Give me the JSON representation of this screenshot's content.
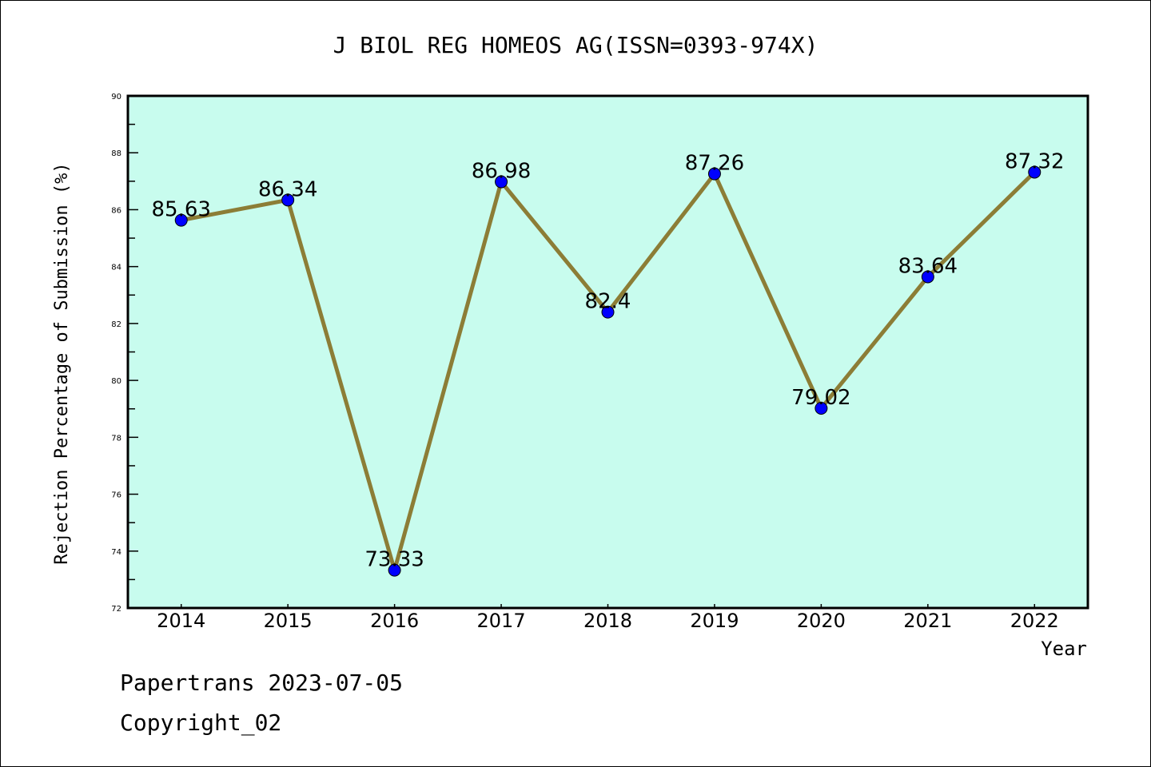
{
  "chart_data": {
    "type": "line",
    "title": "J BIOL REG HOMEOS AG(ISSN=0393-974X)",
    "xlabel": "Year",
    "ylabel": "Rejection Percentage of Submission (%)",
    "x": [
      "2014",
      "2015",
      "2016",
      "2017",
      "2018",
      "2019",
      "2020",
      "2021",
      "2022"
    ],
    "values": [
      85.63,
      86.34,
      73.33,
      86.98,
      82.4,
      87.26,
      79.02,
      83.64,
      87.32
    ],
    "data_labels": [
      "85.63",
      "86.34",
      "73.33",
      "86.98",
      "82.4",
      "87.26",
      "79.02",
      "83.64",
      "87.32"
    ],
    "ylim": [
      72,
      90
    ],
    "yticks": [
      "72",
      "74",
      "76",
      "78",
      "80",
      "82",
      "84",
      "86",
      "88",
      "90"
    ],
    "grid": false,
    "colors": {
      "line": "#8c7d36",
      "marker": "#0000ff",
      "background": "#c8fcee"
    }
  },
  "footer": {
    "line1": "Papertrans 2023-07-05",
    "line2": "Copyright_02"
  }
}
